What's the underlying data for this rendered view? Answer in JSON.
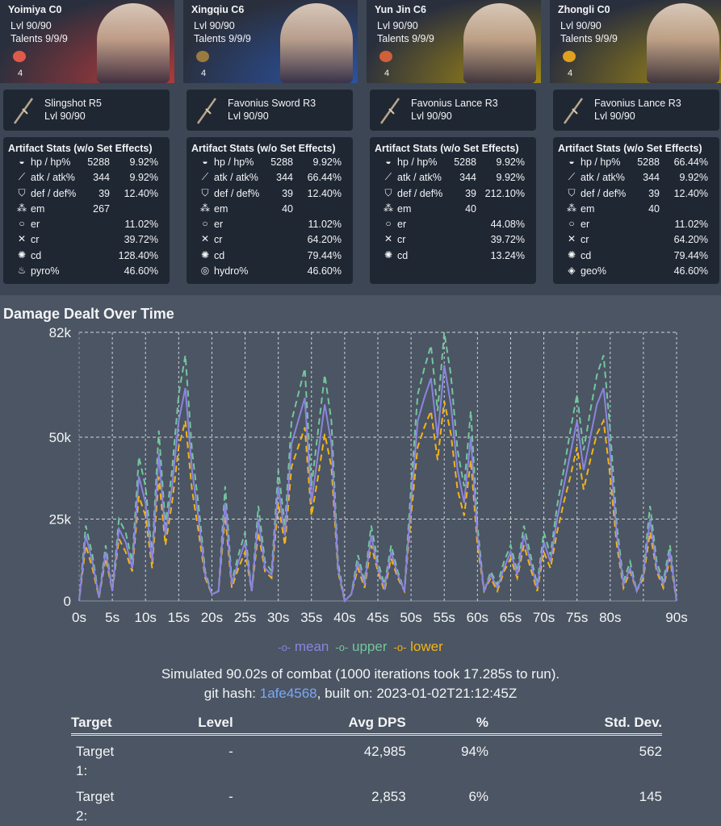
{
  "characters": [
    {
      "name": "Yoimiya C0",
      "level": "Lvl 90/90",
      "talents": "Talents 9/9/9",
      "set_count": "4",
      "bg": "#b83a3a",
      "set_color": "#e05a4a",
      "weapon": {
        "name": "Slingshot R5",
        "level": "Lvl 90/90"
      },
      "stats_title": "Artifact Stats (w/o Set Effects)",
      "stats": [
        {
          "icon": "hp-icon",
          "label": "hp / hp%",
          "flat": "5288",
          "pct": "9.92%"
        },
        {
          "icon": "atk-icon",
          "label": "atk / atk%",
          "flat": "344",
          "pct": "9.92%"
        },
        {
          "icon": "def-icon",
          "label": "def / def%",
          "flat": "39",
          "pct": "12.40%"
        },
        {
          "icon": "em-icon",
          "label": "em",
          "flat": "267",
          "pct": ""
        },
        {
          "icon": "er-icon",
          "label": "er",
          "flat": "",
          "pct": "11.02%"
        },
        {
          "icon": "cr-icon",
          "label": "cr",
          "flat": "",
          "pct": "39.72%"
        },
        {
          "icon": "cd-icon",
          "label": "cd",
          "flat": "",
          "pct": "128.40%"
        },
        {
          "icon": "pyro-icon",
          "label": "pyro%",
          "flat": "",
          "pct": "46.60%"
        }
      ]
    },
    {
      "name": "Xingqiu C6",
      "level": "Lvl 90/90",
      "talents": "Talents 9/9/9",
      "set_count": "4",
      "bg": "#2a55a8",
      "set_color": "#9a7a40",
      "weapon": {
        "name": "Favonius Sword R3",
        "level": "Lvl 90/90"
      },
      "stats_title": "Artifact Stats (w/o Set Effects)",
      "stats": [
        {
          "icon": "hp-icon",
          "label": "hp / hp%",
          "flat": "5288",
          "pct": "9.92%"
        },
        {
          "icon": "atk-icon",
          "label": "atk / atk%",
          "flat": "344",
          "pct": "66.44%"
        },
        {
          "icon": "def-icon",
          "label": "def / def%",
          "flat": "39",
          "pct": "12.40%"
        },
        {
          "icon": "em-icon",
          "label": "em",
          "flat": "40",
          "pct": ""
        },
        {
          "icon": "er-icon",
          "label": "er",
          "flat": "",
          "pct": "11.02%"
        },
        {
          "icon": "cr-icon",
          "label": "cr",
          "flat": "",
          "pct": "64.20%"
        },
        {
          "icon": "cd-icon",
          "label": "cd",
          "flat": "",
          "pct": "79.44%"
        },
        {
          "icon": "hydro-icon",
          "label": "hydro%",
          "flat": "",
          "pct": "46.60%"
        }
      ]
    },
    {
      "name": "Yun Jin C6",
      "level": "Lvl 90/90",
      "talents": "Talents 9/9/9",
      "set_count": "4",
      "bg": "#a88d12",
      "set_color": "#d0603a",
      "weapon": {
        "name": "Favonius Lance R3",
        "level": "Lvl 90/90"
      },
      "stats_title": "Artifact Stats (w/o Set Effects)",
      "stats": [
        {
          "icon": "hp-icon",
          "label": "hp / hp%",
          "flat": "5288",
          "pct": "9.92%"
        },
        {
          "icon": "atk-icon",
          "label": "atk / atk%",
          "flat": "344",
          "pct": "9.92%"
        },
        {
          "icon": "def-icon",
          "label": "def / def%",
          "flat": "39",
          "pct": "212.10%"
        },
        {
          "icon": "em-icon",
          "label": "em",
          "flat": "40",
          "pct": ""
        },
        {
          "icon": "er-icon",
          "label": "er",
          "flat": "",
          "pct": "44.08%"
        },
        {
          "icon": "cr-icon",
          "label": "cr",
          "flat": "",
          "pct": "39.72%"
        },
        {
          "icon": "cd-icon",
          "label": "cd",
          "flat": "",
          "pct": "13.24%"
        }
      ]
    },
    {
      "name": "Zhongli C0",
      "level": "Lvl 90/90",
      "talents": "Talents 9/9/9",
      "set_count": "4",
      "bg": "#a88d12",
      "set_color": "#e0a020",
      "weapon": {
        "name": "Favonius Lance R3",
        "level": "Lvl 90/90"
      },
      "stats_title": "Artifact Stats (w/o Set Effects)",
      "stats": [
        {
          "icon": "hp-icon",
          "label": "hp / hp%",
          "flat": "5288",
          "pct": "66.44%"
        },
        {
          "icon": "atk-icon",
          "label": "atk / atk%",
          "flat": "344",
          "pct": "9.92%"
        },
        {
          "icon": "def-icon",
          "label": "def / def%",
          "flat": "39",
          "pct": "12.40%"
        },
        {
          "icon": "em-icon",
          "label": "em",
          "flat": "40",
          "pct": ""
        },
        {
          "icon": "er-icon",
          "label": "er",
          "flat": "",
          "pct": "11.02%"
        },
        {
          "icon": "cr-icon",
          "label": "cr",
          "flat": "",
          "pct": "64.20%"
        },
        {
          "icon": "cd-icon",
          "label": "cd",
          "flat": "",
          "pct": "79.44%"
        },
        {
          "icon": "geo-icon",
          "label": "geo%",
          "flat": "",
          "pct": "46.60%"
        }
      ]
    }
  ],
  "chart_data": {
    "type": "line",
    "title": "Damage Dealt Over Time",
    "x_ticks": [
      "0s",
      "5s",
      "10s",
      "15s",
      "20s",
      "25s",
      "30s",
      "35s",
      "40s",
      "45s",
      "50s",
      "55s",
      "60s",
      "65s",
      "70s",
      "75s",
      "80s",
      "90s"
    ],
    "x_tick_values": [
      0,
      5,
      10,
      15,
      20,
      25,
      30,
      35,
      40,
      45,
      50,
      55,
      60,
      65,
      70,
      75,
      80,
      90
    ],
    "y_ticks": [
      "0",
      "25k",
      "50k",
      "82k"
    ],
    "y_tick_values": [
      0,
      25000,
      50000,
      82000
    ],
    "xlim": [
      0,
      90
    ],
    "ylim": [
      0,
      82000
    ],
    "grid": true,
    "legend": "bottom",
    "x": [
      0,
      1,
      2,
      3,
      4,
      5,
      6,
      7,
      8,
      9,
      10,
      11,
      12,
      13,
      14,
      15,
      16,
      17,
      18,
      19,
      20,
      21,
      22,
      23,
      24,
      25,
      26,
      27,
      28,
      29,
      30,
      31,
      32,
      33,
      34,
      35,
      36,
      37,
      38,
      39,
      40,
      41,
      42,
      43,
      44,
      45,
      46,
      47,
      48,
      49,
      50,
      51,
      52,
      53,
      54,
      55,
      56,
      57,
      58,
      59,
      60,
      61,
      62,
      63,
      64,
      65,
      66,
      67,
      68,
      69,
      70,
      71,
      72,
      73,
      74,
      75,
      76,
      77,
      78,
      79,
      80,
      81,
      82,
      83,
      84,
      85,
      86,
      87,
      88,
      89,
      90
    ],
    "series": [
      {
        "name": "mean",
        "color": "#8b84e0",
        "values": [
          0,
          20000,
          12000,
          1000,
          15000,
          3000,
          22000,
          18000,
          10000,
          38000,
          30000,
          12000,
          45000,
          20000,
          35000,
          55000,
          65000,
          40000,
          25000,
          8000,
          2000,
          3000,
          30000,
          5000,
          12000,
          18000,
          3000,
          25000,
          10000,
          8000,
          35000,
          20000,
          48000,
          55000,
          62000,
          30000,
          45000,
          60000,
          48000,
          10000,
          0,
          2000,
          12000,
          5000,
          20000,
          10000,
          4000,
          15000,
          8000,
          3000,
          30000,
          55000,
          62000,
          68000,
          50000,
          72000,
          60000,
          40000,
          30000,
          50000,
          20000,
          3000,
          8000,
          4000,
          10000,
          15000,
          8000,
          20000,
          12000,
          4000,
          18000,
          12000,
          25000,
          35000,
          45000,
          55000,
          40000,
          50000,
          60000,
          65000,
          45000,
          20000,
          5000,
          10000,
          3000,
          8000,
          25000,
          10000,
          5000,
          15000,
          0
        ]
      },
      {
        "name": "upper",
        "color": "#74c69d",
        "values": [
          0,
          23000,
          14000,
          1000,
          17000,
          3000,
          25000,
          21000,
          12000,
          44000,
          35000,
          14000,
          52000,
          23000,
          40000,
          63000,
          75000,
          46000,
          29000,
          9000,
          2000,
          3000,
          35000,
          6000,
          14000,
          21000,
          3000,
          29000,
          12000,
          9000,
          40000,
          23000,
          55000,
          63000,
          71000,
          35000,
          52000,
          69000,
          55000,
          12000,
          0,
          2000,
          14000,
          6000,
          23000,
          12000,
          5000,
          17000,
          9000,
          3000,
          35000,
          63000,
          71000,
          78000,
          58000,
          82000,
          69000,
          46000,
          35000,
          58000,
          23000,
          3000,
          9000,
          5000,
          12000,
          17000,
          9000,
          23000,
          14000,
          5000,
          21000,
          14000,
          29000,
          40000,
          52000,
          63000,
          46000,
          58000,
          69000,
          75000,
          52000,
          23000,
          6000,
          12000,
          3000,
          9000,
          29000,
          12000,
          6000,
          17000,
          0
        ]
      },
      {
        "name": "lower",
        "color": "#f5b316",
        "values": [
          0,
          17000,
          10000,
          1000,
          13000,
          3000,
          19000,
          15000,
          9000,
          32000,
          26000,
          10000,
          38000,
          17000,
          30000,
          47000,
          55000,
          34000,
          21000,
          7000,
          2000,
          3000,
          26000,
          4000,
          10000,
          15000,
          3000,
          21000,
          9000,
          7000,
          30000,
          17000,
          41000,
          47000,
          53000,
          26000,
          38000,
          51000,
          41000,
          9000,
          0,
          2000,
          10000,
          4000,
          17000,
          9000,
          3000,
          13000,
          7000,
          3000,
          26000,
          47000,
          53000,
          58000,
          43000,
          61000,
          51000,
          34000,
          26000,
          43000,
          17000,
          3000,
          7000,
          3000,
          9000,
          13000,
          7000,
          17000,
          10000,
          3000,
          15000,
          10000,
          21000,
          30000,
          38000,
          47000,
          34000,
          43000,
          51000,
          55000,
          38000,
          17000,
          4000,
          9000,
          3000,
          7000,
          21000,
          9000,
          4000,
          13000,
          0
        ]
      }
    ]
  },
  "summary": {
    "line1": "Simulated 90.02s of combat (1000 iterations took 17.285s to run).",
    "hash_prefix": "git hash: ",
    "hash": "1afe4568",
    "built": ", built on: 2023-01-02T21:12:45Z"
  },
  "table": {
    "headers": [
      "Target",
      "Level",
      "Avg DPS",
      "%",
      "Std. Dev."
    ],
    "rows": [
      [
        "Target 1:",
        "-",
        "42,985",
        "94%",
        "562"
      ],
      [
        "Target 2:",
        "-",
        "2,853",
        "6%",
        "145"
      ]
    ]
  }
}
